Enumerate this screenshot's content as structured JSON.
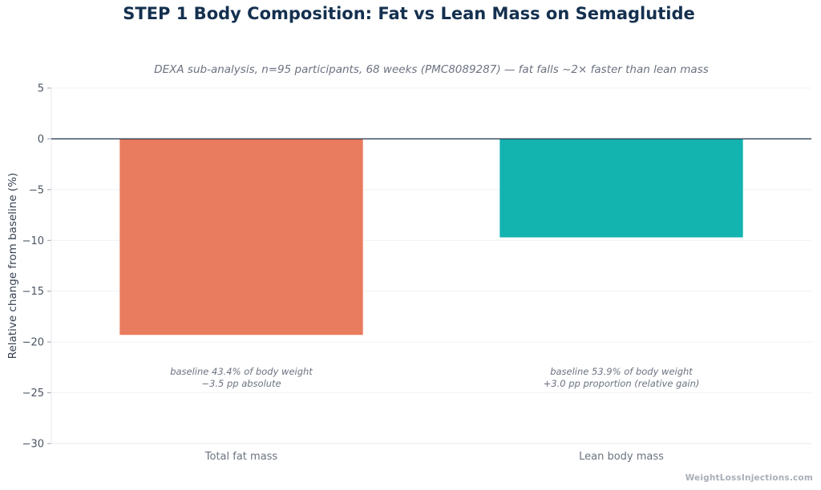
{
  "chart_data": {
    "type": "bar",
    "title": "STEP 1 Body Composition: Fat vs Lean Mass on Semaglutide",
    "subtitle": "DEXA sub-analysis, n=95 participants, 68 weeks (PMC8089287) — fat falls ~2× faster than lean mass",
    "xlabel": "",
    "ylabel": "Relative change from baseline (%)",
    "categories": [
      "Total fat mass",
      "Lean body mass"
    ],
    "values": [
      -19.3,
      -9.7
    ],
    "colors": [
      "#e97b5e",
      "#13b3b0"
    ],
    "ylim": [
      -30,
      5
    ],
    "yticks": [
      5,
      0,
      -5,
      -10,
      -15,
      -20,
      -25,
      -30
    ],
    "ytick_labels": [
      "5",
      "0",
      "−5",
      "−10",
      "−15",
      "−20",
      "−25",
      "−30"
    ],
    "grid": true,
    "annotations": [
      [
        "baseline 43.4% of body weight",
        "−3.5 pp absolute"
      ],
      [
        "baseline 53.9% of body weight",
        "+3.0 pp proportion (relative gain)"
      ]
    ]
  },
  "watermark": "WeightLossInjections.com"
}
